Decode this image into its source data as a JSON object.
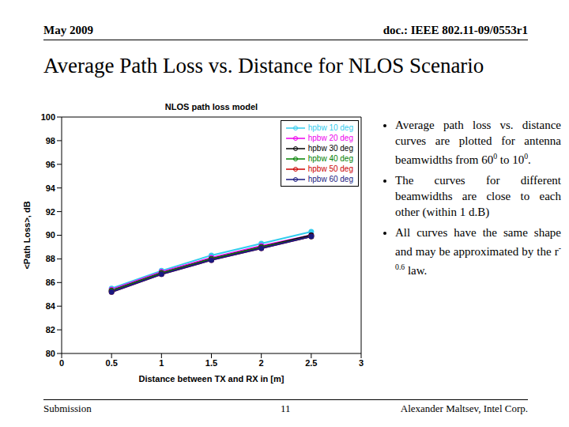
{
  "slide": {
    "header_left": "May 2009",
    "header_right": "doc.: IEEE 802.11-09/0553r1",
    "title": "Average Path Loss vs. Distance for NLOS Scenario",
    "bullets": [
      [
        {
          "text": "Average path loss vs. distance curves are plotted for antenna beamwidths from 60"
        },
        {
          "sup": "0"
        },
        {
          "text": " to 10"
        },
        {
          "sup": "0"
        },
        {
          "text": "."
        }
      ],
      [
        {
          "text": "The curves for different beamwidths are close to each other (within 1 d.B)"
        }
      ],
      [
        {
          "text": "All curves have the same shape and may be approximated by the r"
        },
        {
          "sup": "-0.6"
        },
        {
          "text": " law."
        }
      ]
    ],
    "footer_left": "Submission",
    "page": "11",
    "footer_right": "Alexander Maltsev, Intel Corp."
  },
  "chart_data": {
    "type": "line",
    "title": "NLOS path loss model",
    "x_label": "Distance between TX and RX in [m]",
    "y_label": "<Path Loss>, dB",
    "x": [
      0.5,
      1,
      1.5,
      2,
      2.5
    ],
    "xlim": [
      0,
      3
    ],
    "xticks": [
      0,
      0.5,
      1,
      1.5,
      2,
      2.5,
      3
    ],
    "ylim": [
      80,
      100
    ],
    "yticks": [
      80,
      82,
      84,
      86,
      88,
      90,
      92,
      94,
      96,
      98,
      100
    ],
    "grid": false,
    "legend": "upper right",
    "series": [
      {
        "name": "hpbw 10 deg",
        "color": "#33ccee",
        "marker": "o",
        "line_style": "solid",
        "values": [
          85.5,
          87.0,
          88.3,
          89.3,
          90.3
        ]
      },
      {
        "name": "hpbw 20 deg",
        "color": "#ee00ee",
        "marker": "o",
        "line_style": "solid",
        "values": [
          85.4,
          86.9,
          88.1,
          89.1,
          90.0
        ]
      },
      {
        "name": "hpbw 30 deg",
        "color": "#000000",
        "marker": "o",
        "line_style": "solid",
        "values": [
          85.3,
          86.8,
          88.0,
          89.0,
          90.0
        ]
      },
      {
        "name": "hpbw 40 deg",
        "color": "#008000",
        "marker": "o",
        "line_style": "solid",
        "values": [
          85.3,
          86.8,
          88.0,
          89.0,
          89.9
        ]
      },
      {
        "name": "hpbw 50 deg",
        "color": "#cc0000",
        "marker": "o",
        "line_style": "solid",
        "values": [
          85.2,
          86.7,
          87.9,
          88.9,
          89.9
        ]
      },
      {
        "name": "hpbw 60 deg",
        "color": "#1a1a80",
        "marker": "o",
        "line_style": "solid",
        "values": [
          85.2,
          86.7,
          87.9,
          88.9,
          89.9
        ]
      }
    ]
  }
}
